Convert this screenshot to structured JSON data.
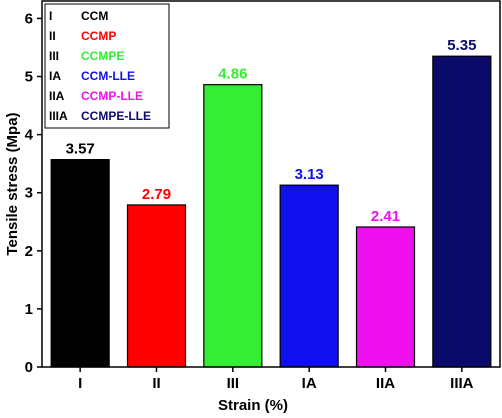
{
  "chart_data": {
    "type": "bar",
    "x_label": "Strain (%)",
    "y_label": "Tensile stress (Mpa)",
    "categories": [
      "I",
      "II",
      "III",
      "IA",
      "IIA",
      "IIIA"
    ],
    "legend_names": [
      "CCM",
      "CCMP",
      "CCMPE",
      "CCM-LLE",
      "CCMP-LLE",
      "CCMPE-LLE"
    ],
    "values": [
      3.57,
      2.79,
      4.86,
      3.13,
      2.41,
      5.35
    ],
    "colors": [
      "#000000",
      "#ff0000",
      "#33ee33",
      "#1010ee",
      "#ee10ee",
      "#0a0a6a"
    ],
    "ylim": [
      0,
      6.3
    ],
    "yticks": [
      0,
      1,
      2,
      3,
      4,
      5,
      6
    ],
    "legend": "upper left"
  }
}
